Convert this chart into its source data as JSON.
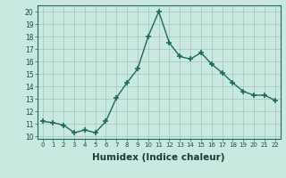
{
  "x": [
    0,
    1,
    2,
    3,
    4,
    5,
    6,
    7,
    8,
    9,
    10,
    11,
    12,
    13,
    14,
    15,
    16,
    17,
    18,
    19,
    20,
    21,
    22
  ],
  "y": [
    11.2,
    11.1,
    10.9,
    10.3,
    10.5,
    10.3,
    11.2,
    13.1,
    14.3,
    15.4,
    18.0,
    20.0,
    17.5,
    16.4,
    16.2,
    16.7,
    15.8,
    15.1,
    14.3,
    13.6,
    13.3,
    13.3,
    12.9
  ],
  "line_color": "#1a6b5e",
  "marker": "+",
  "marker_size": 4,
  "linewidth": 1.0,
  "bg_color": "#c8e8e0",
  "grid_color": "#a8c8c0",
  "xlabel": "Humidex (Indice chaleur)",
  "xlabel_fontsize": 7.5,
  "ytick_labels": [
    "10",
    "11",
    "12",
    "13",
    "14",
    "15",
    "16",
    "17",
    "18",
    "19",
    "20"
  ],
  "ylabel_ticks": [
    10,
    11,
    12,
    13,
    14,
    15,
    16,
    17,
    18,
    19,
    20
  ],
  "xtick_labels": [
    "0",
    "1",
    "2",
    "3",
    "4",
    "5",
    "6",
    "7",
    "8",
    "9",
    "10",
    "11",
    "12",
    "13",
    "14",
    "15",
    "16",
    "17",
    "18",
    "19",
    "20",
    "21",
    "22"
  ],
  "xlim": [
    -0.5,
    22.5
  ],
  "ylim": [
    9.8,
    20.5
  ]
}
